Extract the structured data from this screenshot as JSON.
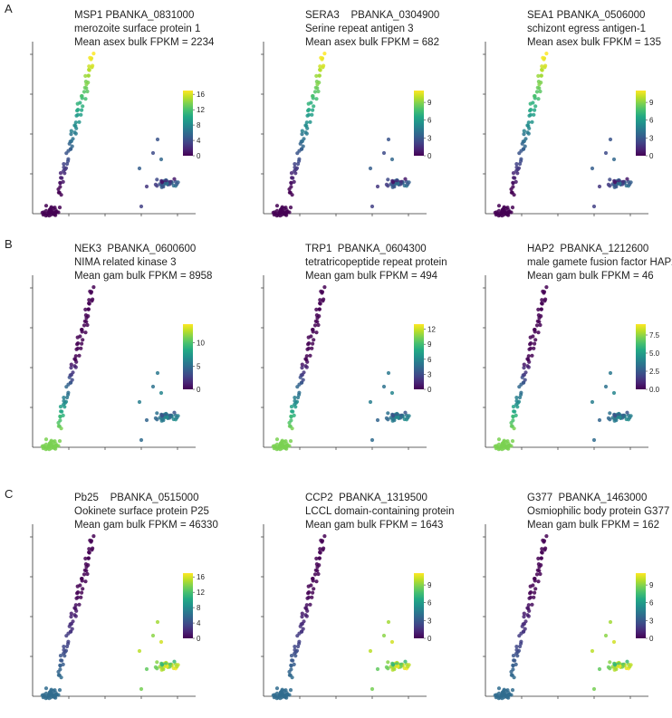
{
  "rows": [
    {
      "letter": "A"
    },
    {
      "letter": "B"
    },
    {
      "letter": "C"
    }
  ],
  "chart_data": [
    {
      "type": "scatter",
      "title_line1": "MSP1 PBANKA_0831000",
      "title_line2": "merozoite surface protein 1",
      "title_line3": "Mean asex bulk FPKM = 2234",
      "colorbar": {
        "ticks": [
          "0",
          "4",
          "8",
          "12",
          "16"
        ],
        "max": 17,
        "colormap": "viridis"
      },
      "pattern": "asex"
    },
    {
      "type": "scatter",
      "title_line1": "SERA3    PBANKA_0304900",
      "title_line2": "Serine repeat antigen 3",
      "title_line3": "Mean asex bulk FPKM = 682",
      "colorbar": {
        "ticks": [
          "0",
          "3",
          "6",
          "9"
        ],
        "max": 11,
        "colormap": "viridis"
      },
      "pattern": "asex"
    },
    {
      "type": "scatter",
      "title_line1": "SEA1 PBANKA_0506000",
      "title_line2": "schizont egress antigen-1",
      "title_line3": "Mean asex bulk FPKM = 135",
      "colorbar": {
        "ticks": [
          "0",
          "3",
          "6",
          "9"
        ],
        "max": 11,
        "colormap": "viridis"
      },
      "pattern": "asex"
    },
    {
      "type": "scatter",
      "title_line1": "NEK3  PBANKA_0600600",
      "title_line2": "NIMA related kinase 3",
      "title_line3": "Mean gam bulk FPKM = 8958",
      "colorbar": {
        "ticks": [
          "0",
          "5",
          "10"
        ],
        "max": 14,
        "colormap": "viridis"
      },
      "pattern": "gam-m"
    },
    {
      "type": "scatter",
      "title_line1": "TRP1  PBANKA_0604300",
      "title_line2": "tetratricopeptide repeat protein",
      "title_line3": "Mean gam bulk FPKM = 494",
      "colorbar": {
        "ticks": [
          "0",
          "3",
          "6",
          "9",
          "12"
        ],
        "max": 13,
        "colormap": "viridis"
      },
      "pattern": "gam-m"
    },
    {
      "type": "scatter",
      "title_line1": "HAP2  PBANKA_1212600",
      "title_line2": "male gamete fusion factor HAP2",
      "title_line3": "Mean gam bulk FPKM = 46",
      "colorbar": {
        "ticks": [
          "0.0",
          "2.5",
          "5.0",
          "7.5"
        ],
        "max": 9,
        "colormap": "viridis"
      },
      "pattern": "gam-m"
    },
    {
      "type": "scatter",
      "title_line1": "Pb25    PBANKA_0515000",
      "title_line2": "Ookinete surface protein P25",
      "title_line3": "Mean gam bulk FPKM = 46330",
      "colorbar": {
        "ticks": [
          "0",
          "4",
          "8",
          "12",
          "16"
        ],
        "max": 17,
        "colormap": "viridis"
      },
      "pattern": "gam-f"
    },
    {
      "type": "scatter",
      "title_line1": "CCP2  PBANKA_1319500",
      "title_line2": "LCCL domain-containing protein",
      "title_line3": "Mean gam bulk FPKM = 1643",
      "colorbar": {
        "ticks": [
          "0",
          "3",
          "6",
          "9"
        ],
        "max": 11,
        "colormap": "viridis"
      },
      "pattern": "gam-f"
    },
    {
      "type": "scatter",
      "title_line1": "G377  PBANKA_1463000",
      "title_line2": "Osmiophilic body protein G377",
      "title_line3": "Mean gam bulk FPKM = 162",
      "colorbar": {
        "ticks": [
          "0",
          "3",
          "6",
          "9"
        ],
        "max": 11,
        "colormap": "viridis"
      },
      "pattern": "gam-f"
    }
  ]
}
